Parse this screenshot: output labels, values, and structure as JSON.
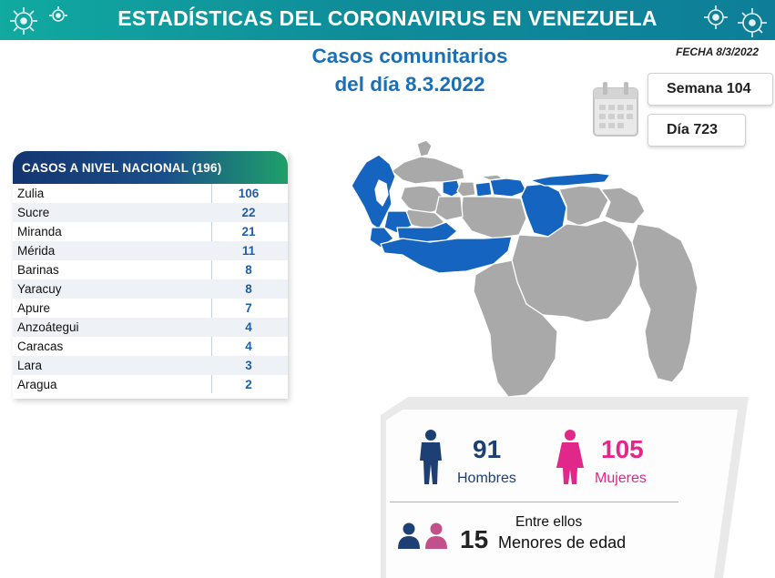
{
  "header": {
    "title": "ESTADÍSTICAS DEL CORONAVIRUS EN VENEZUELA"
  },
  "date_label": "FECHA 8/3/2022",
  "title_line1": "Casos comunitarios",
  "title_line2": "del día 8.3.2022",
  "week_label": "Semana 104",
  "day_label": "Día 723",
  "national": {
    "header": "CASOS A NIVEL NACIONAL  (196)",
    "rows": [
      {
        "name": "Zulia",
        "value": "106"
      },
      {
        "name": "Sucre",
        "value": "22"
      },
      {
        "name": "Miranda",
        "value": "21"
      },
      {
        "name": "Mérida",
        "value": "11"
      },
      {
        "name": "Barinas",
        "value": "8"
      },
      {
        "name": "Yaracuy",
        "value": "8"
      },
      {
        "name": "Apure",
        "value": "7"
      },
      {
        "name": "Anzoátegui",
        "value": "4"
      },
      {
        "name": "Caracas",
        "value": "4"
      },
      {
        "name": "Lara",
        "value": "3"
      },
      {
        "name": "Aragua",
        "value": "2"
      }
    ]
  },
  "gender": {
    "men_count": "91",
    "men_label": "Hombres",
    "women_count": "105",
    "women_label": "Mujeres"
  },
  "minors": {
    "intro": "Entre ellos",
    "count": "15",
    "label": "Menores de edad"
  },
  "colors": {
    "header_teal": "#11a9a0",
    "title_blue": "#1a6fb6",
    "affected_blue": "#1565c0",
    "unaffected_gray": "#a9a9a9",
    "men_navy": "#1d3f73",
    "women_pink": "#e2278a"
  },
  "icons": [
    "virus-icon",
    "calendar-icon",
    "man-icon",
    "woman-icon",
    "children-icon"
  ]
}
